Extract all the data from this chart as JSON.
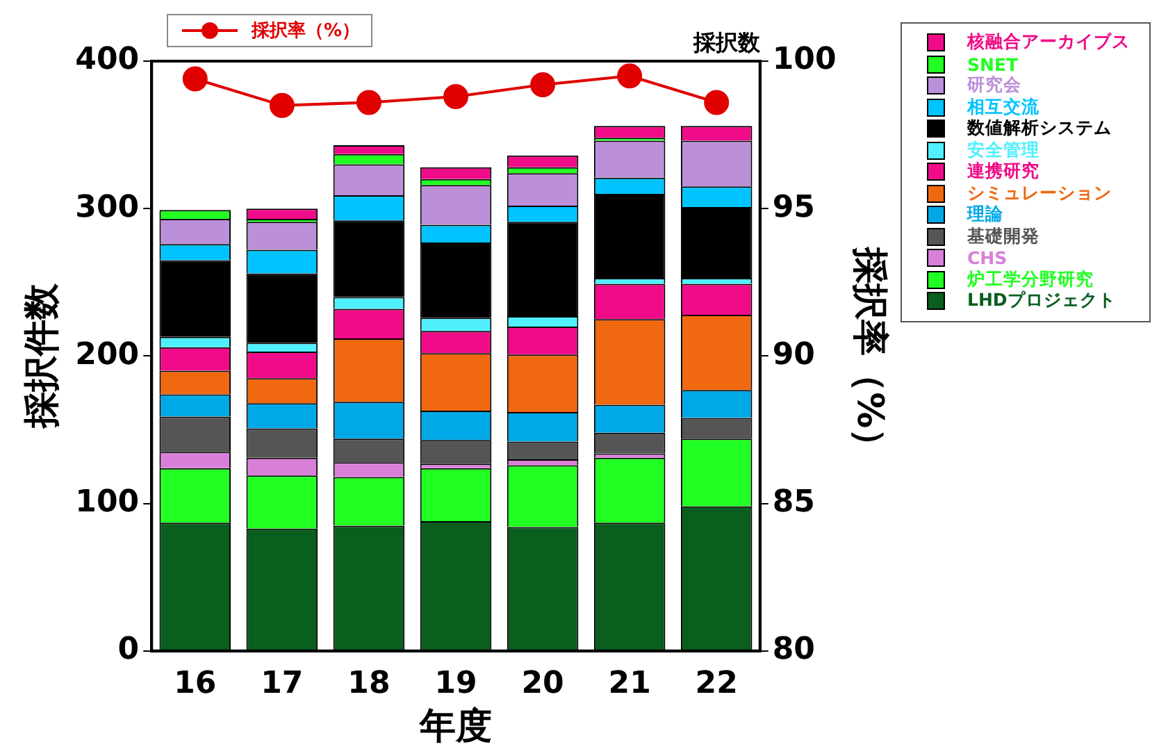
{
  "chart_data": {
    "type": "bar",
    "stacked": true,
    "categories": [
      "16",
      "17",
      "18",
      "19",
      "20",
      "21",
      "22"
    ],
    "xlabel": "年度",
    "ylabel": "採択件数",
    "y2label": "採択率（%）",
    "ylim": [
      0,
      400
    ],
    "yticks": [
      0,
      100,
      200,
      300,
      400
    ],
    "y2lim": [
      80,
      100
    ],
    "y2ticks": [
      80,
      85,
      90,
      95,
      100
    ],
    "grid": false,
    "legend": "right",
    "annotations": [
      "採択数"
    ],
    "series": [
      {
        "name": "LHDプロジェクト",
        "color": "#0a5e1e",
        "values": [
          87,
          83,
          85,
          88,
          84,
          87,
          98
        ]
      },
      {
        "name": "炉工学分野研究",
        "color": "#22ff22",
        "values": [
          37,
          36,
          33,
          36,
          42,
          44,
          46
        ]
      },
      {
        "name": "CHS",
        "color": "#d880d8",
        "values": [
          11,
          12,
          10,
          3,
          4,
          3,
          0
        ]
      },
      {
        "name": "基礎開発",
        "color": "#555555",
        "values": [
          24,
          20,
          16,
          16,
          12,
          14,
          14
        ]
      },
      {
        "name": "理論",
        "color": "#00a8e6",
        "values": [
          15,
          17,
          25,
          20,
          20,
          19,
          19
        ]
      },
      {
        "name": "シミュレーション",
        "color": "#f06810",
        "values": [
          16,
          17,
          43,
          39,
          39,
          58,
          51
        ]
      },
      {
        "name": "連携研究",
        "color": "#f00c88",
        "values": [
          16,
          18,
          20,
          15,
          19,
          24,
          21
        ]
      },
      {
        "name": "安全管理",
        "color": "#50f0ff",
        "values": [
          7,
          6,
          8,
          9,
          7,
          4,
          4
        ]
      },
      {
        "name": "数値解析システム",
        "color": "#000000",
        "values": [
          52,
          47,
          52,
          51,
          64,
          57,
          48
        ]
      },
      {
        "name": "相互交流",
        "color": "#00c4ff",
        "values": [
          11,
          16,
          17,
          12,
          11,
          11,
          14
        ]
      },
      {
        "name": "研究会",
        "color": "#bb90d8",
        "values": [
          17,
          19,
          21,
          27,
          22,
          25,
          31
        ]
      },
      {
        "name": "SNET",
        "color": "#22ff22",
        "values": [
          6,
          2,
          7,
          4,
          4,
          2,
          0
        ]
      },
      {
        "name": "核融合アーカイブス",
        "color": "#f00c88",
        "values": [
          0,
          7,
          6,
          8,
          8,
          8,
          10
        ]
      },
      {
        "name": "採択率（%）",
        "type": "line",
        "axis": "y2",
        "color": "#e00000",
        "marker": "circle",
        "line_style": "solid",
        "values": [
          99.4,
          98.5,
          98.6,
          98.8,
          99.2,
          99.5,
          98.6
        ]
      }
    ]
  }
}
